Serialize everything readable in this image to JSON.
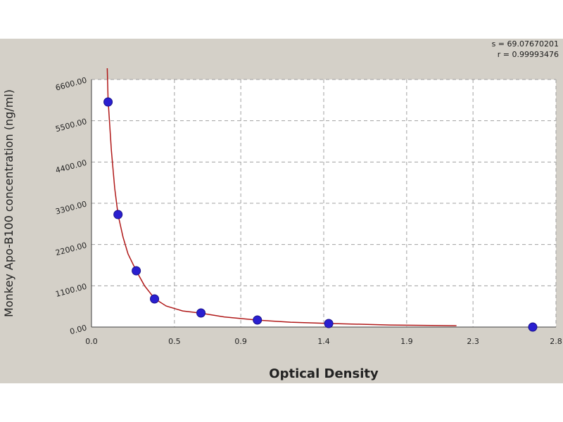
{
  "stats": {
    "s": "s = 69.07670201",
    "r": "r = 0.99993476"
  },
  "chart_data": {
    "type": "scatter",
    "title": "",
    "xlabel": "Optical Density",
    "ylabel": "Monkey Apo-B100 concentration (ng/ml)",
    "xlim": [
      0.0,
      2.8
    ],
    "ylim": [
      0.0,
      6600.0
    ],
    "xticks": [
      0.0,
      0.5,
      0.9,
      1.4,
      1.9,
      2.3,
      2.8
    ],
    "xtick_labels": [
      "0.0",
      "0.5",
      "0.9",
      "1.4",
      "1.9",
      "2.3",
      "2.8"
    ],
    "yticks": [
      0,
      1100,
      2200,
      3300,
      4400,
      5500,
      6600
    ],
    "ytick_labels": [
      "0.00",
      "1100.00",
      "2200.00",
      "3300.00",
      "4400.00",
      "5500.00",
      "6600.00"
    ],
    "grid": true,
    "series": [
      {
        "kind": "points",
        "color": "#2a1fd0",
        "x": [
          0.1,
          0.16,
          0.27,
          0.38,
          0.66,
          1.0,
          1.43,
          2.66
        ],
        "y": [
          6000,
          3000,
          1500,
          750,
          375,
          188,
          94,
          0
        ]
      },
      {
        "kind": "fitted-curve",
        "color": "#b01818",
        "x": [
          0.095,
          0.1,
          0.12,
          0.14,
          0.16,
          0.19,
          0.22,
          0.27,
          0.32,
          0.38,
          0.45,
          0.55,
          0.66,
          0.8,
          1.0,
          1.2,
          1.43,
          1.8,
          2.2
        ],
        "y": [
          6900,
          6050,
          4700,
          3700,
          3000,
          2400,
          1950,
          1500,
          1100,
          760,
          560,
          430,
          370,
          270,
          185,
          130,
          95,
          55,
          35
        ]
      }
    ]
  }
}
